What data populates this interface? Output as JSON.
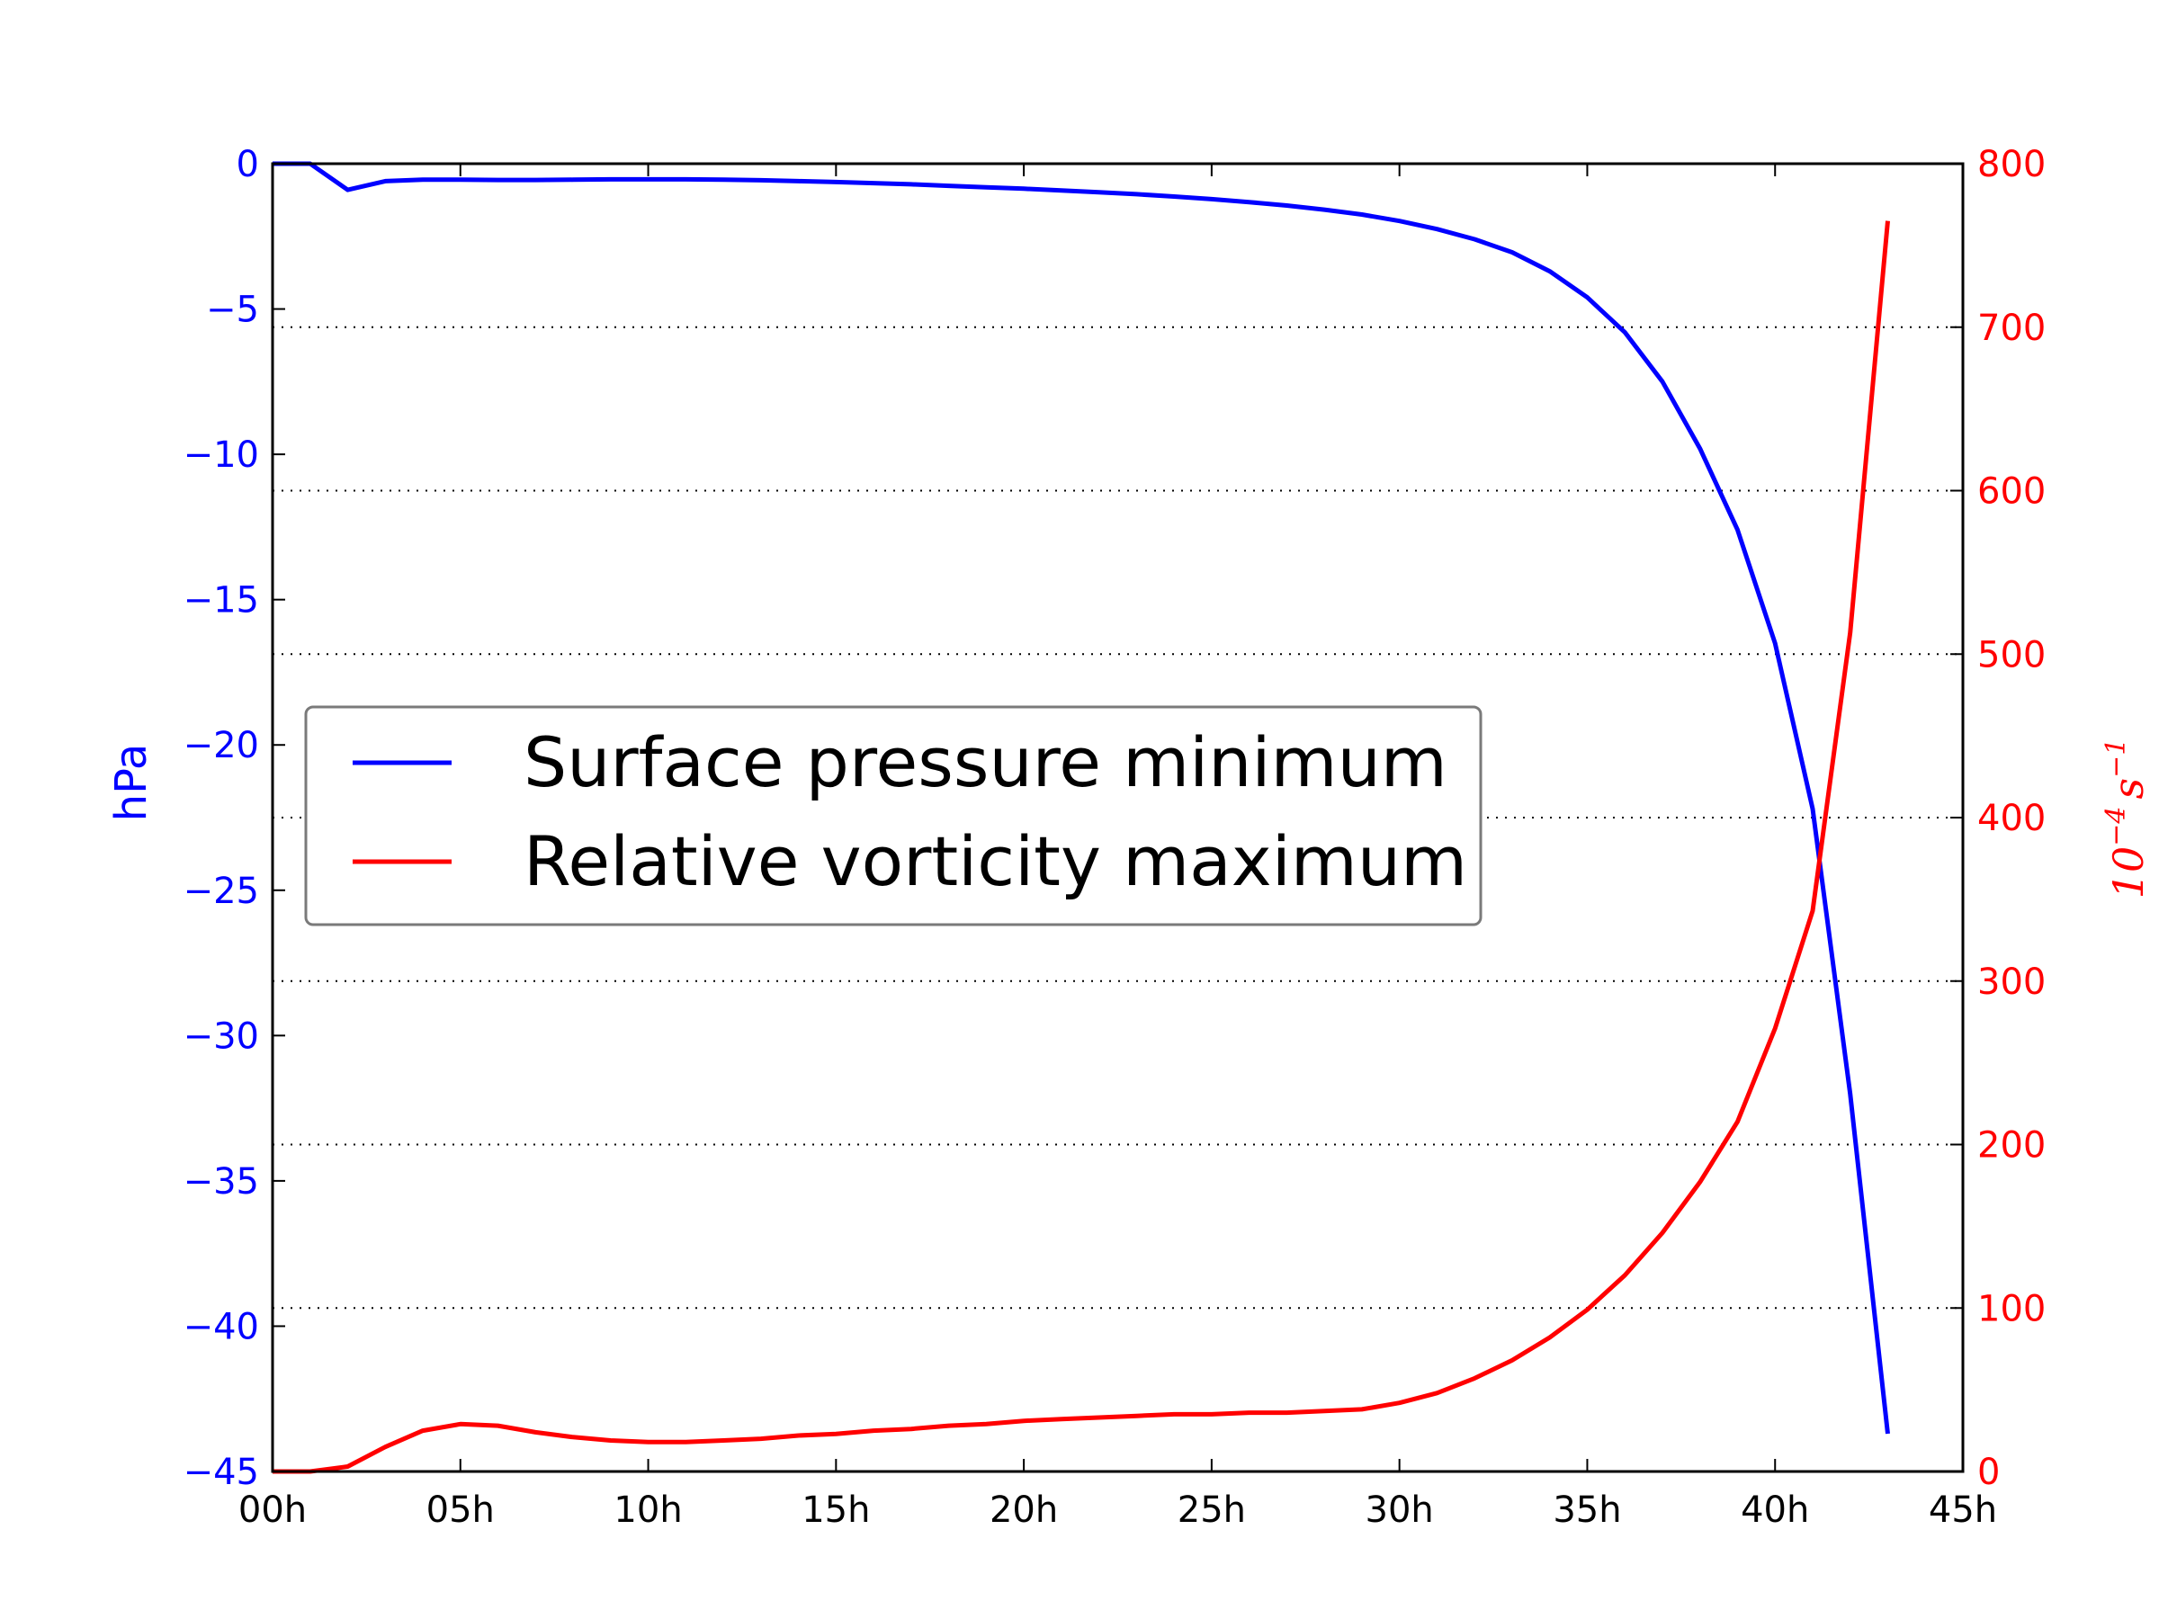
{
  "chart_data": {
    "type": "line",
    "dual_axis": true,
    "title": "",
    "xlabel": "",
    "x_tick_labels": [
      "00h",
      "05h",
      "10h",
      "15h",
      "20h",
      "25h",
      "30h",
      "35h",
      "40h",
      "45h"
    ],
    "xlim": [
      0,
      45
    ],
    "x": [
      0,
      1,
      2,
      3,
      4,
      5,
      6,
      7,
      8,
      9,
      10,
      11,
      12,
      13,
      14,
      15,
      16,
      17,
      18,
      19,
      20,
      21,
      22,
      23,
      24,
      25,
      26,
      27,
      28,
      29,
      30,
      31,
      32,
      33,
      34,
      35,
      36,
      37,
      38,
      39,
      40,
      41,
      42,
      43
    ],
    "y_left": {
      "label": "hPa",
      "ylim": [
        -45,
        0
      ],
      "ticks": [
        0,
        -5,
        -10,
        -15,
        -20,
        -25,
        -30,
        -35,
        -40,
        -45
      ],
      "tick_labels": [
        "0",
        "−5",
        "−10",
        "−15",
        "−20",
        "−25",
        "−30",
        "−35",
        "−40",
        "−45"
      ],
      "color": "#0000ff"
    },
    "y_right": {
      "label_base": "10",
      "label_exp1": "−4",
      "label_unit": "s",
      "label_exp2": "−1",
      "ylim": [
        0,
        800
      ],
      "ticks": [
        0,
        100,
        200,
        300,
        400,
        500,
        600,
        700,
        800
      ],
      "tick_labels": [
        "0",
        "100",
        "200",
        "300",
        "400",
        "500",
        "600",
        "700",
        "800"
      ],
      "color": "#ff0000"
    },
    "grid": "horizontal dotted at right-axis ticks",
    "legend": {
      "placement": "center-left",
      "entries": [
        "Surface pressure minimum",
        "Relative vorticity maximum"
      ]
    },
    "series": [
      {
        "name": "Surface pressure minimum",
        "axis": "left",
        "color": "#0000ff",
        "values": [
          0,
          0,
          -0.9,
          -0.6,
          -0.55,
          -0.55,
          -0.56,
          -0.56,
          -0.55,
          -0.54,
          -0.54,
          -0.54,
          -0.55,
          -0.57,
          -0.6,
          -0.63,
          -0.67,
          -0.71,
          -0.76,
          -0.81,
          -0.86,
          -0.92,
          -0.98,
          -1.05,
          -1.13,
          -1.22,
          -1.32,
          -1.44,
          -1.58,
          -1.75,
          -1.97,
          -2.25,
          -2.6,
          -3.05,
          -3.7,
          -4.6,
          -5.8,
          -7.5,
          -9.8,
          -12.6,
          -16.5,
          -22.2,
          -32.0,
          -43.7
        ]
      },
      {
        "name": "Relative vorticity maximum",
        "axis": "right",
        "color": "#ff0000",
        "values": [
          0,
          0,
          3,
          15,
          25,
          29,
          28,
          24,
          21,
          19,
          18,
          18,
          19,
          20,
          22,
          23,
          25,
          26,
          28,
          29,
          31,
          32,
          33,
          34,
          35,
          35,
          36,
          36,
          37,
          38,
          42,
          48,
          57,
          68,
          82,
          99,
          120,
          146,
          177,
          214,
          271,
          343,
          513,
          765
        ]
      }
    ]
  }
}
